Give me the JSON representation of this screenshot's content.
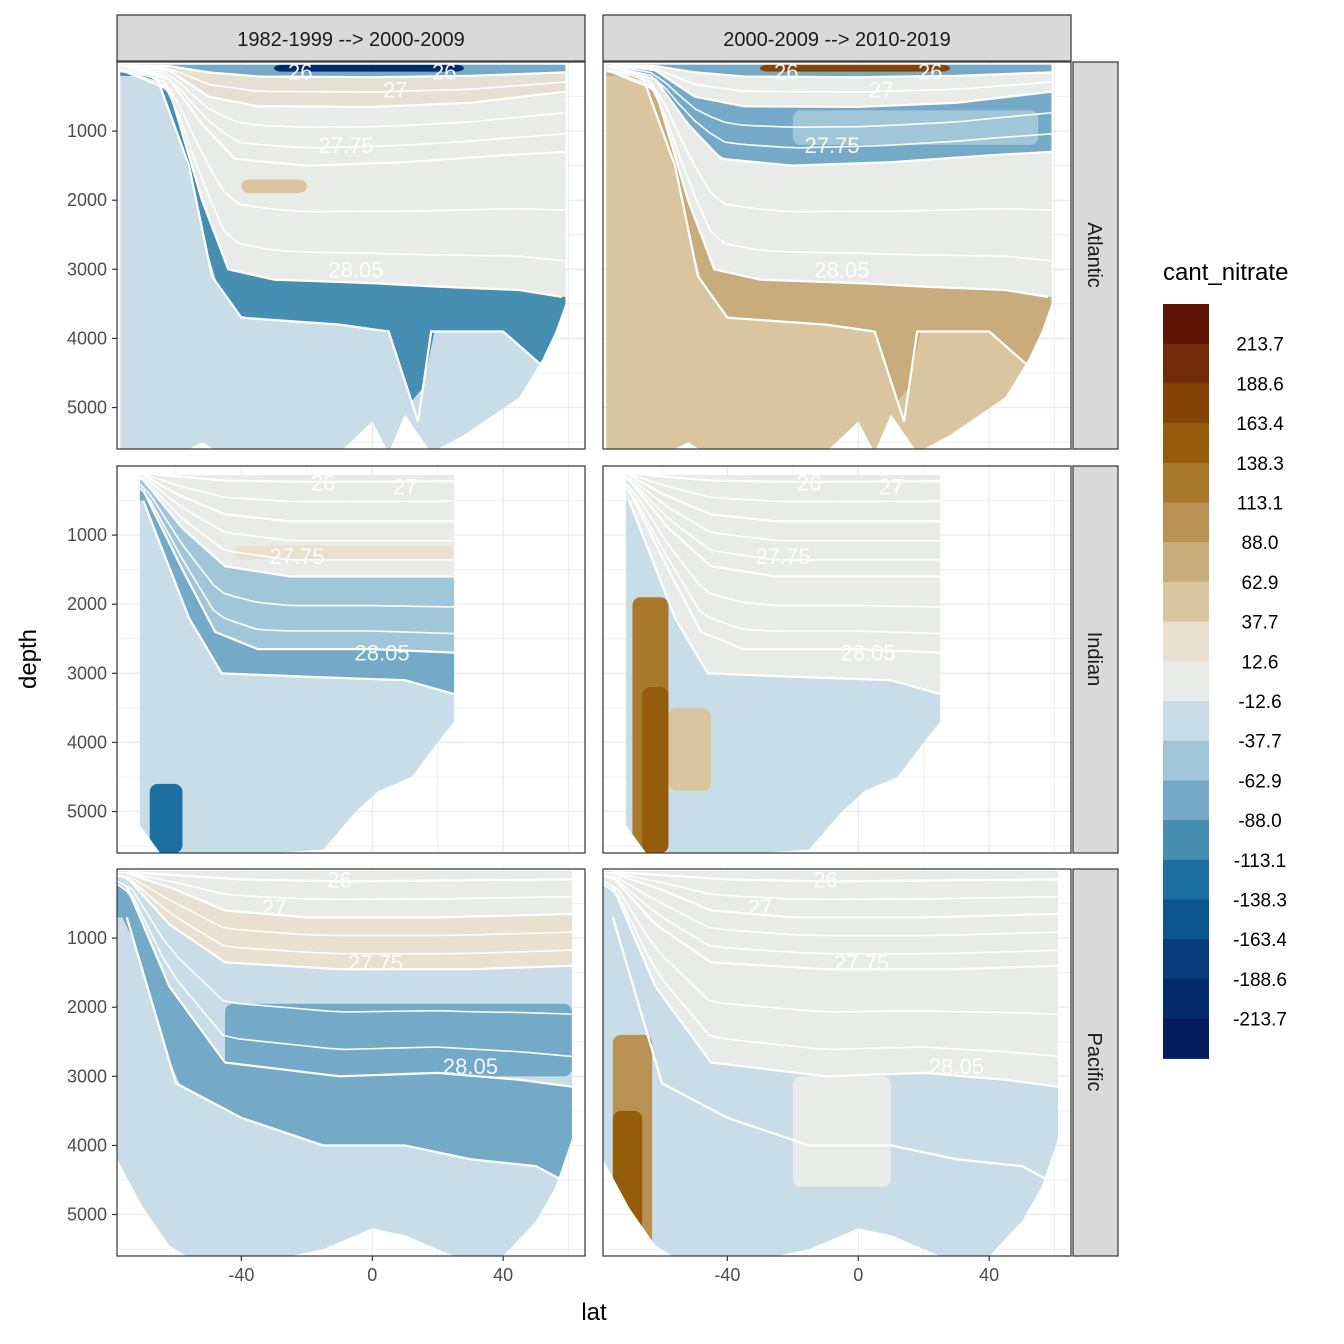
{
  "chart_data": {
    "type": "faceted-contour",
    "fill_variable": "cant_nitrate",
    "xlabel": "lat",
    "ylabel": "depth",
    "xlim": [
      -78,
      65
    ],
    "ylim": [
      5600,
      0
    ],
    "x_ticks": [
      -40,
      0,
      40
    ],
    "x_tick_labels": [
      "-40",
      "0",
      "40"
    ],
    "y_ticks": [
      1000,
      2000,
      3000,
      4000,
      5000
    ],
    "y_tick_labels": [
      "1000",
      "2000",
      "3000",
      "4000",
      "5000"
    ],
    "columns": [
      "1982-1999 --> 2000-2009",
      "2000-2009 --> 2010-2019"
    ],
    "rows": [
      "Atlantic",
      "Indian",
      "Pacific"
    ],
    "legend": {
      "title": "cant_nitrate",
      "breaks": [
        "213.7",
        "188.6",
        "163.4",
        "138.3",
        "113.1",
        "88.0",
        "62.9",
        "37.7",
        "12.6",
        "-12.6",
        "-37.7",
        "-62.9",
        "-88.0",
        "-113.1",
        "-138.3",
        "-163.4",
        "-188.6",
        "-213.7"
      ],
      "colors": [
        "#5e1305",
        "#722c07",
        "#854406",
        "#955d0b",
        "#a8782b",
        "#b99253",
        "#c9ac7b",
        "#d9c6a1",
        "#e9e0cf",
        "#e8ebe8",
        "#c9dde9",
        "#a2c6d9",
        "#74a9c7",
        "#478eb3",
        "#1d6fa2",
        "#0b548d",
        "#063b7c",
        "#042a6c",
        "#041c5c"
      ]
    },
    "isopycnal_labels": [
      "26",
      "27",
      "27.75",
      "28.05"
    ],
    "panels": [
      {
        "row": "Atlantic",
        "column": "1982-1999 --> 2000-2009",
        "labels": [
          {
            "text": "26",
            "lat": -22,
            "depth": 140
          },
          {
            "text": "26",
            "lat": 22,
            "depth": 140
          },
          {
            "text": "27",
            "lat": 7,
            "depth": 400
          },
          {
            "text": "27.75",
            "lat": -8,
            "depth": 1200
          },
          {
            "text": "28.05",
            "lat": -5,
            "depth": 3000
          }
        ]
      },
      {
        "row": "Atlantic",
        "column": "2000-2009 --> 2010-2019",
        "labels": [
          {
            "text": "26",
            "lat": -22,
            "depth": 140
          },
          {
            "text": "26",
            "lat": 22,
            "depth": 140
          },
          {
            "text": "27",
            "lat": 7,
            "depth": 400
          },
          {
            "text": "27.75",
            "lat": -8,
            "depth": 1200
          },
          {
            "text": "28.05",
            "lat": -5,
            "depth": 3000
          }
        ]
      },
      {
        "row": "Indian",
        "column": "1982-1999 --> 2000-2009",
        "labels": [
          {
            "text": "26",
            "lat": -15,
            "depth": 240
          },
          {
            "text": "27",
            "lat": 10,
            "depth": 300
          },
          {
            "text": "27.75",
            "lat": -23,
            "depth": 1300
          },
          {
            "text": "28.05",
            "lat": 3,
            "depth": 2700
          }
        ]
      },
      {
        "row": "Indian",
        "column": "2000-2009 --> 2010-2019",
        "labels": [
          {
            "text": "26",
            "lat": -15,
            "depth": 240
          },
          {
            "text": "27",
            "lat": 10,
            "depth": 300
          },
          {
            "text": "27.75",
            "lat": -23,
            "depth": 1300
          },
          {
            "text": "28.05",
            "lat": 3,
            "depth": 2700
          }
        ]
      },
      {
        "row": "Pacific",
        "column": "1982-1999 --> 2000-2009",
        "labels": [
          {
            "text": "26",
            "lat": -10,
            "depth": 150
          },
          {
            "text": "27",
            "lat": -30,
            "depth": 550
          },
          {
            "text": "27.75",
            "lat": 1,
            "depth": 1350
          },
          {
            "text": "28.05",
            "lat": 30,
            "depth": 2850
          }
        ]
      },
      {
        "row": "Pacific",
        "column": "2000-2009 --> 2010-2019",
        "labels": [
          {
            "text": "26",
            "lat": -10,
            "depth": 150
          },
          {
            "text": "27",
            "lat": -30,
            "depth": 550
          },
          {
            "text": "27.75",
            "lat": 1,
            "depth": 1350
          },
          {
            "text": "28.05",
            "lat": 30,
            "depth": 2850
          }
        ]
      }
    ]
  }
}
